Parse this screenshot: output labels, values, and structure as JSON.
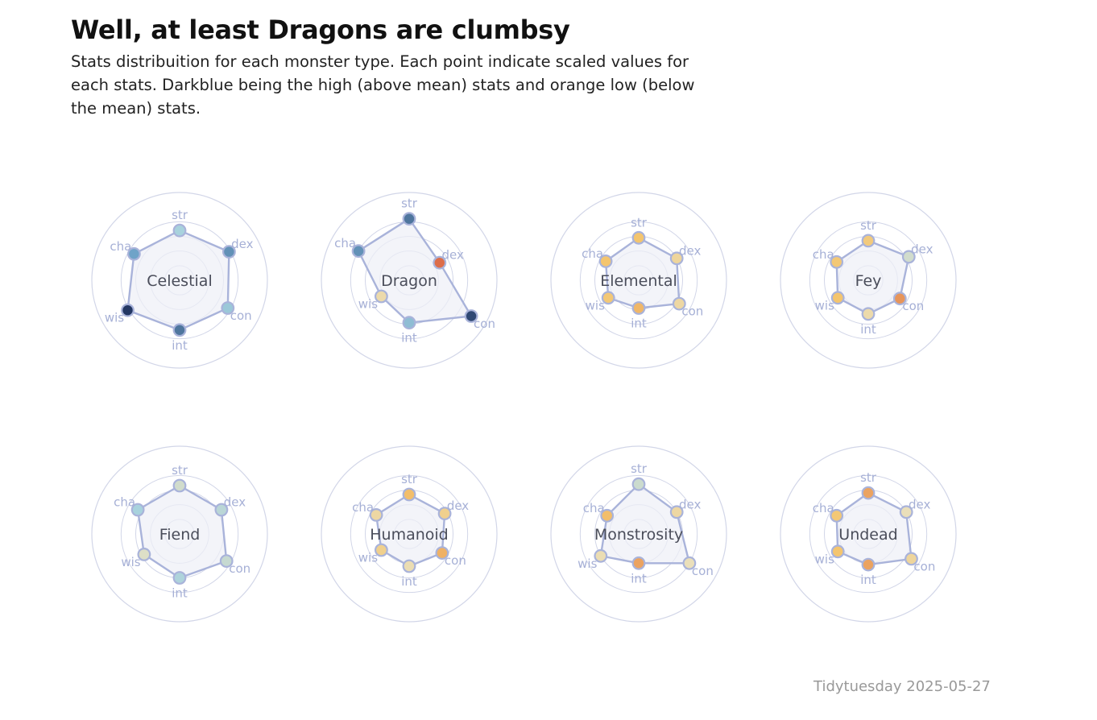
{
  "header": {
    "title": "Well, at least Dragons are clumbsy",
    "subtitle": "Stats distribuition for each monster type. Each point indicate scaled values for each stats. Darkblue being the high (above mean) stats and orange low (below the mean) stats."
  },
  "caption": "Tidytuesday 2025-05-27",
  "colors": {
    "ring": "#d2d6e8",
    "polygon_fill": "#eef0f7",
    "polygon_stroke": "#a9b3da",
    "axis_label": "#a6b0d6",
    "panel_label": "#4a4d5a",
    "scale_low": "#d95f43",
    "scale_mid_low": "#f4c56e",
    "scale_mid": "#e9e2c2",
    "scale_mid_high": "#a8d2dd",
    "scale_high_blue": "#6fa3c8",
    "scale_high": "#233763"
  },
  "chart_data": {
    "type": "radar",
    "axes": [
      "str",
      "dex",
      "con",
      "int",
      "wis",
      "cha"
    ],
    "value_scale": [
      -3,
      3
    ],
    "rings": [
      -2,
      -1,
      0,
      1
    ],
    "panels": [
      {
        "name": "Celestial",
        "values": [
          0.4,
          0.9,
          0.8,
          0.4,
          1.1,
          0.6
        ]
      },
      {
        "name": "Dragon",
        "values": [
          1.2,
          -0.6,
          1.9,
          -0.1,
          -0.8,
          1.0
        ]
      },
      {
        "name": "Elemental",
        "values": [
          -0.1,
          0.0,
          0.2,
          -1.1,
          -0.6,
          -0.4
        ]
      },
      {
        "name": "Fey",
        "values": [
          -0.3,
          0.2,
          -0.5,
          -0.7,
          -0.6,
          -0.5
        ]
      },
      {
        "name": "Fiend",
        "values": [
          0.3,
          0.3,
          0.7,
          0.0,
          -0.2,
          0.3
        ]
      },
      {
        "name": "Humanoid",
        "values": [
          -0.3,
          -0.2,
          -0.4,
          -0.8,
          -0.8,
          -0.4
        ]
      },
      {
        "name": "Monstrosity",
        "values": [
          0.4,
          0.0,
          1.0,
          -1.0,
          0.0,
          -0.5
        ]
      },
      {
        "name": "Undead",
        "values": [
          -0.2,
          0.0,
          0.4,
          -0.9,
          -0.6,
          -0.5
        ]
      }
    ],
    "point_values": [
      [
        0.9,
        2.0,
        1.1,
        2.3,
        3.0,
        1.8
      ],
      [
        2.3,
        -2.6,
        2.8,
        1.3,
        -0.5,
        2.0
      ],
      [
        -1.3,
        -0.7,
        -0.6,
        -1.5,
        -1.2,
        -1.3
      ],
      [
        -1.1,
        0.2,
        -2.0,
        -0.5,
        -1.3,
        -1.2
      ],
      [
        0.2,
        0.6,
        0.4,
        0.8,
        0.0,
        0.9
      ],
      [
        -1.4,
        -0.9,
        -1.6,
        -0.4,
        -0.9,
        -0.6
      ],
      [
        0.3,
        -0.6,
        -0.3,
        -1.8,
        -0.4,
        -1.4
      ],
      [
        -1.8,
        -0.3,
        -0.7,
        -1.8,
        -1.3,
        -1.2
      ]
    ]
  }
}
